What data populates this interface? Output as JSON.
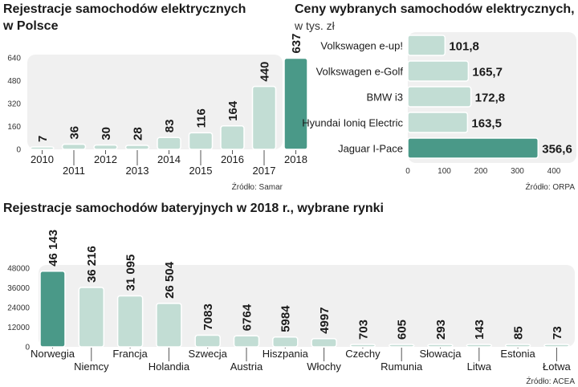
{
  "chart_data": [
    {
      "type": "bar",
      "title": [
        "Rejestracje samochodów elektrycznych",
        "w Polsce"
      ],
      "categories": [
        "2010",
        "2011",
        "2012",
        "2013",
        "2014",
        "2015",
        "2016",
        "2017",
        "2018"
      ],
      "values": [
        7,
        36,
        30,
        28,
        83,
        116,
        164,
        440,
        637
      ],
      "value_labels": [
        "7",
        "36",
        "30",
        "28",
        "83",
        "116",
        "164",
        "440",
        "637"
      ],
      "y_ticks": [
        "0",
        "160",
        "320",
        "480",
        "640"
      ],
      "ylim": [
        0,
        640
      ],
      "source": "Źródło: Samar",
      "highlight_index": 8
    },
    {
      "type": "bar",
      "orientation": "horizontal",
      "title": "Ceny wybranych samochodów elektrycznych,",
      "subtitle": "w tys. zł",
      "categories": [
        "Volkswagen e-up!",
        "Volkswagen e-Golf",
        "BMW i3",
        "Hyundai Ioniq Electric",
        "Jaguar I-Pace"
      ],
      "values": [
        101.8,
        165.7,
        172.8,
        163.5,
        356.6
      ],
      "value_labels": [
        "101,8",
        "165,7",
        "172,8",
        "163,5",
        "356,6"
      ],
      "x_ticks": [
        "0",
        "100",
        "200",
        "300",
        "400"
      ],
      "xlim": [
        0,
        400
      ],
      "source": "Źródło: ORPA",
      "highlight_index": 4
    },
    {
      "type": "bar",
      "title": "Rejestracje samochodów bateryjnych w 2018 r., wybrane rynki",
      "categories": [
        "Norwegia",
        "Niemcy",
        "Francja",
        "Holandia",
        "Szwecja",
        "Austria",
        "Hiszpania",
        "Włochy",
        "Czechy",
        "Rumunia",
        "Słowacja",
        "Litwa",
        "Estonia",
        "Łotwa"
      ],
      "values": [
        46143,
        36216,
        31095,
        26504,
        7083,
        6764,
        5984,
        4997,
        703,
        605,
        293,
        143,
        85,
        73
      ],
      "value_labels": [
        "46 143",
        "36 216",
        "31 095",
        "26 504",
        "7083",
        "6764",
        "5984",
        "4997",
        "703",
        "605",
        "293",
        "143",
        "85",
        "73"
      ],
      "y_ticks": [
        "0",
        "12000",
        "24000",
        "36000",
        "48000"
      ],
      "ylim": [
        0,
        48000
      ],
      "source": "Źródło: ACEA",
      "highlight_index": 0
    }
  ],
  "colors": {
    "bar": "#c2ddd4",
    "bar_stroke": "#ffffff",
    "highlight": "#4a9988",
    "panel": "#f0f0f0",
    "axis": "#555555",
    "text": "#1a1a1a"
  }
}
